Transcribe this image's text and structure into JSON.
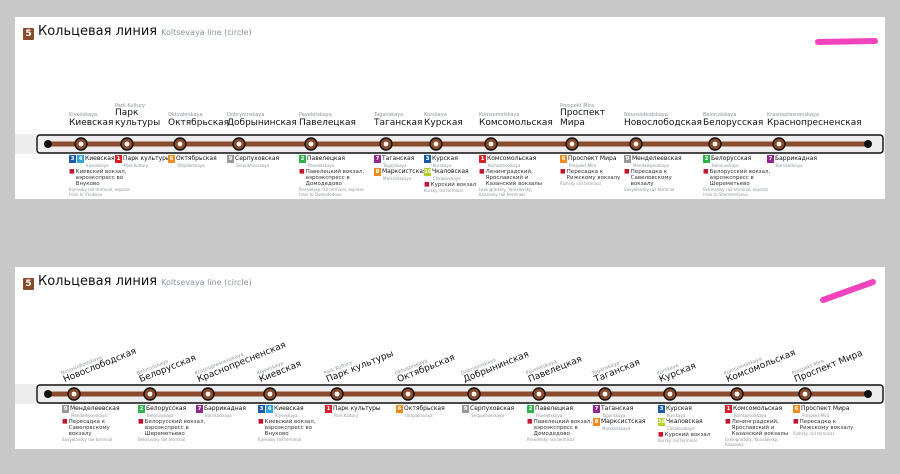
{
  "line_badge": "5",
  "title": "Кольцевая линия",
  "subtitle": "Koltsevaya line (circle)",
  "colors": {
    "line": "#8b4a2b",
    "l1": "#d71f26",
    "l2": "#2db34a",
    "l3": "#1a5aa8",
    "l4": "#29a7de",
    "l6": "#f08a1c",
    "l7": "#92278f",
    "l9": "#999999",
    "l10": "#b3cf28",
    "highlighter": "#ee2fb5"
  },
  "panel1": {
    "stations": [
      {
        "ru": "Киевская",
        "en": "Kiyevskaya"
      },
      {
        "ru": "Парк культуры",
        "en": "Park Kultury"
      },
      {
        "ru": "Октябрьская",
        "en": "Oktyabrskaya"
      },
      {
        "ru": "Добрынинская",
        "en": "Dobryninskaya"
      },
      {
        "ru": "Павелецкая",
        "en": "Paveletskaya"
      },
      {
        "ru": "Таганская",
        "en": "Taganskaya"
      },
      {
        "ru": "Курская",
        "en": "Kurskaya"
      },
      {
        "ru": "Комсомольская",
        "en": "Komsomolskaya"
      },
      {
        "ru": "Проспект Мира",
        "en": "Prospekt Mira"
      },
      {
        "ru": "Новослободская",
        "en": "Novoslobodskaya"
      },
      {
        "ru": "Белорусская",
        "en": "Belorusskaya"
      },
      {
        "ru": "Краснопресненская",
        "en": "Krasnopresnenskaya"
      }
    ],
    "transfers": [
      {
        "rows": [
          {
            "lines": [
              "3",
              "4"
            ],
            "name": "Киевская",
            "en": "Kiyevskaya"
          }
        ],
        "note": "Киевский вокзал, аэроэкспресс во Внуково",
        "note_en": "Kiyevsky rail terminal, express train to Vnukovo"
      },
      {
        "rows": [
          {
            "lines": [
              "1"
            ],
            "name": "Парк культуры",
            "en": "Park Kultury"
          }
        ],
        "note": "",
        "note_en": ""
      },
      {
        "rows": [
          {
            "lines": [
              "6"
            ],
            "name": "Октябрьская",
            "en": "Oktyabrskaya"
          }
        ],
        "note": "",
        "note_en": ""
      },
      {
        "rows": [
          {
            "lines": [
              "9"
            ],
            "name": "Серпуховская",
            "en": "Serpukhovskaya"
          }
        ],
        "note": "",
        "note_en": ""
      },
      {
        "rows": [
          {
            "lines": [
              "2"
            ],
            "name": "Павелецкая",
            "en": "Paveletskaya"
          }
        ],
        "note": "Павелецкий вокзал, аэроэкспресс в Домодедово",
        "note_en": "Paveletsky rail terminal, express train to Domodedovo"
      },
      {
        "rows": [
          {
            "lines": [
              "7"
            ],
            "name": "Таганская",
            "en": "Taganskaya"
          },
          {
            "lines": [
              "8"
            ],
            "name": "Марксистская",
            "en": "Marksistskaya"
          }
        ],
        "note": "",
        "note_en": ""
      },
      {
        "rows": [
          {
            "lines": [
              "3"
            ],
            "name": "Курская",
            "en": "Kurskaya"
          },
          {
            "lines": [
              "10"
            ],
            "name": "Чкаловская",
            "en": "Chkalovskaya"
          }
        ],
        "note": "Курский вокзал",
        "note_en": "Kursky rail terminal"
      },
      {
        "rows": [
          {
            "lines": [
              "1"
            ],
            "name": "Комсомольская",
            "en": "Komsomolskaya"
          }
        ],
        "note": "Ленинградский, Ярославский и Казанский вокзалы",
        "note_en": "Leningradsky, Yaroslavsky, Kazansky rail terminals"
      },
      {
        "rows": [
          {
            "lines": [
              "6"
            ],
            "name": "Проспект Мира",
            "en": "Prospekt Mira"
          }
        ],
        "note": "Пересадка к Рижскому вокзалу",
        "note_en": "Rizhsky rail terminal"
      },
      {
        "rows": [
          {
            "lines": [
              "9"
            ],
            "name": "Менделеевская",
            "en": "Mendeleyevskaya"
          }
        ],
        "note": "Пересадка к Савеловскому вокзалу",
        "note_en": "Savyolovsky rail terminal"
      },
      {
        "rows": [
          {
            "lines": [
              "2"
            ],
            "name": "Белорусская",
            "en": "Belorusskaya"
          }
        ],
        "note": "Белорусский вокзал, аэроэкспресс в Шереметьево",
        "note_en": "Belorussky rail terminal, express train to Sheremetyevo"
      },
      {
        "rows": [
          {
            "lines": [
              "7"
            ],
            "name": "Баррикадная",
            "en": "Barrikadnaya"
          }
        ],
        "note": "",
        "note_en": ""
      }
    ]
  },
  "panel2": {
    "stations": [
      {
        "ru": "Новослободская",
        "en": "Novoslobodskaya"
      },
      {
        "ru": "Белорусская",
        "en": "Belorusskaya"
      },
      {
        "ru": "Краснопресненская",
        "en": "Krasnopresnenskaya"
      },
      {
        "ru": "Киевская",
        "en": "Kiyevskaya"
      },
      {
        "ru": "Парк культуры",
        "en": "Park Kultury"
      },
      {
        "ru": "Октябрьская",
        "en": "Oktyabrskaya"
      },
      {
        "ru": "Добрынинская",
        "en": "Dobryninskaya"
      },
      {
        "ru": "Павелецкая",
        "en": "Paveletskaya"
      },
      {
        "ru": "Таганская",
        "en": "Taganskaya"
      },
      {
        "ru": "Курская",
        "en": "Kurskaya"
      },
      {
        "ru": "Комсомольская",
        "en": "Komsomolskaya"
      },
      {
        "ru": "Проспект Мира",
        "en": "Prospekt Mira"
      }
    ],
    "transfers": [
      {
        "rows": [
          {
            "lines": [
              "9"
            ],
            "name": "Менделеевская",
            "en": "Mendeleyevskaya"
          }
        ],
        "note": "Пересадка к Савеловскому вокзалу",
        "note_en": "Savyolovsky rail terminal"
      },
      {
        "rows": [
          {
            "lines": [
              "2"
            ],
            "name": "Белорусская",
            "en": "Belorusskaya"
          }
        ],
        "note": "Белорусский вокзал, аэроэкспресс в Шереметьево",
        "note_en": "Belorussky rail terminal"
      },
      {
        "rows": [
          {
            "lines": [
              "7"
            ],
            "name": "Баррикадная",
            "en": "Barrikadnaya"
          }
        ],
        "note": "",
        "note_en": ""
      },
      {
        "rows": [
          {
            "lines": [
              "3",
              "4"
            ],
            "name": "Киевская",
            "en": "Kiyevskaya"
          }
        ],
        "note": "Киевский вокзал, аэроэкспресс во Внуково",
        "note_en": "Kiyevsky rail terminal"
      },
      {
        "rows": [
          {
            "lines": [
              "1"
            ],
            "name": "Парк культуры",
            "en": "Park Kultury"
          }
        ],
        "note": "",
        "note_en": ""
      },
      {
        "rows": [
          {
            "lines": [
              "6"
            ],
            "name": "Октябрьская",
            "en": "Oktyabrskaya"
          }
        ],
        "note": "",
        "note_en": ""
      },
      {
        "rows": [
          {
            "lines": [
              "9"
            ],
            "name": "Серпуховская",
            "en": "Serpukhovskaya"
          }
        ],
        "note": "",
        "note_en": ""
      },
      {
        "rows": [
          {
            "lines": [
              "2"
            ],
            "name": "Павелецкая",
            "en": "Paveletskaya"
          }
        ],
        "note": "Павелецкий вокзал, аэроэкспресс в Домодедово",
        "note_en": "Paveletsky rail terminal"
      },
      {
        "rows": [
          {
            "lines": [
              "7"
            ],
            "name": "Таганская",
            "en": "Taganskaya"
          },
          {
            "lines": [
              "8"
            ],
            "name": "Марксистская",
            "en": "Marksistskaya"
          }
        ],
        "note": "",
        "note_en": ""
      },
      {
        "rows": [
          {
            "lines": [
              "3"
            ],
            "name": "Курская",
            "en": "Kurskaya"
          },
          {
            "lines": [
              "10"
            ],
            "name": "Чкаловская",
            "en": "Chkalovskaya"
          }
        ],
        "note": "Курский вокзал",
        "note_en": "Kursky rail terminal"
      },
      {
        "rows": [
          {
            "lines": [
              "1"
            ],
            "name": "Комсомольская",
            "en": "Komsomolskaya"
          }
        ],
        "note": "Ленинградский, Ярославский и Казанский вокзалы",
        "note_en": "Leningradsky, Yaroslavsky, Kazansky"
      },
      {
        "rows": [
          {
            "lines": [
              "6"
            ],
            "name": "Проспект Мира",
            "en": "Prospekt Mira"
          }
        ],
        "note": "Пересадка к Рижскому вокзалу",
        "note_en": "Rizhsky rail terminal"
      }
    ]
  }
}
